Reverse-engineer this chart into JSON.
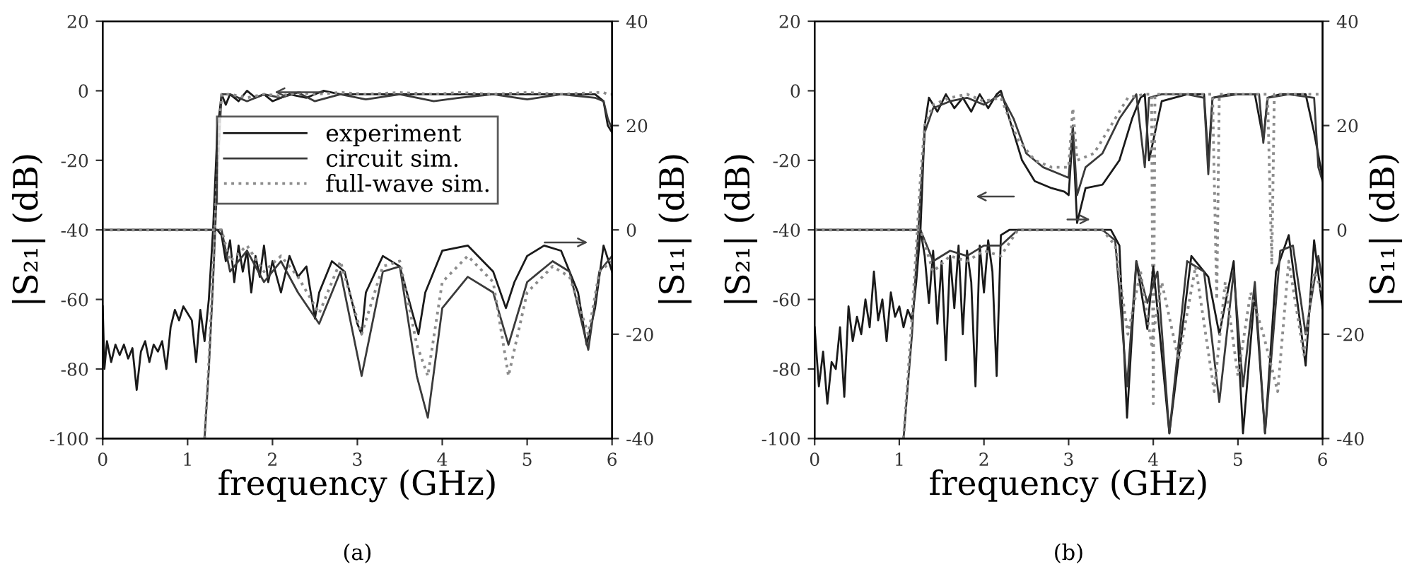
{
  "chart_data": [
    {
      "type": "line",
      "xlabel": "frequency (GHz)",
      "ylabel": "|S₂₁| (dB)",
      "y2label": "|S₁₁| (dB)",
      "annotations": [
        "(a)"
      ],
      "legend": "top",
      "xlim": [
        0,
        6
      ],
      "xticks": [
        0,
        1,
        2,
        3,
        4,
        5,
        6
      ],
      "ylim": [
        -100,
        20
      ],
      "yticks": [
        -100,
        -80,
        -60,
        -40,
        -20,
        0,
        20
      ],
      "y2lim": [
        -40,
        40
      ],
      "y2ticks": [
        -40,
        -20,
        0,
        20,
        40
      ],
      "series": [
        {
          "name": "experiment",
          "color": "#1a1a1a",
          "line_style": "solid",
          "x": [
            0,
            0.02,
            0.05,
            0.1,
            0.15,
            0.2,
            0.25,
            0.3,
            0.35,
            0.4,
            0.45,
            0.5,
            0.55,
            0.6,
            0.65,
            0.7,
            0.75,
            0.8,
            0.85,
            0.9,
            0.95,
            1.0,
            1.05,
            1.1,
            1.15,
            1.2,
            1.25,
            1.3,
            1.35,
            1.4,
            1.45,
            1.5,
            1.6,
            1.7,
            1.8,
            1.9,
            2.0,
            2.2,
            2.4,
            2.6,
            2.8,
            3.0,
            3.5,
            4.0,
            4.5,
            5.0,
            5.5,
            5.8,
            5.9,
            5.95,
            6.0
          ],
          "values": [
            -62,
            -80,
            -72,
            -78,
            -73,
            -76,
            -73,
            -77,
            -74,
            -86,
            -75,
            -72,
            -78,
            -73,
            -75,
            -72,
            -80,
            -68,
            -63,
            -66,
            -62,
            -64,
            -66,
            -78,
            -63,
            -72,
            -60,
            -40,
            -12,
            -1,
            -4,
            -1,
            -3,
            0,
            -2,
            -1,
            -3,
            -1,
            -2,
            0,
            -1,
            -1,
            -1,
            -1,
            -1,
            -1,
            -1,
            -1,
            -3,
            -10,
            -12
          ]
        },
        {
          "name": "circuit sim.",
          "color": "#3a3a3a",
          "line_style": "solid",
          "x": [
            1.2,
            1.25,
            1.3,
            1.35,
            1.4,
            1.5,
            1.7,
            1.9,
            2.1,
            2.3,
            2.5,
            2.8,
            3.1,
            3.5,
            3.9,
            4.2,
            4.6,
            5.0,
            5.4,
            5.8,
            5.9,
            5.95,
            6.0
          ],
          "values": [
            -100,
            -80,
            -55,
            -25,
            -1,
            -1,
            -3,
            -1,
            -2,
            -0.5,
            -3,
            -1,
            -2.5,
            -1,
            -3,
            -2,
            -1,
            -2.5,
            -1,
            -2,
            -3,
            -8,
            -11
          ]
        },
        {
          "name": "full-wave sim.",
          "color": "#8c8c8c",
          "line_style": "dotted",
          "x": [
            1.2,
            1.25,
            1.3,
            1.35,
            1.4,
            1.5,
            1.7,
            1.9,
            2.1,
            2.3,
            2.5,
            2.8,
            3.1,
            3.5,
            3.9,
            4.2,
            4.6,
            5.0,
            5.4,
            5.8,
            5.9,
            5.95,
            6.0
          ],
          "values": [
            -100,
            -78,
            -52,
            -22,
            -1,
            -1,
            -2,
            -1,
            -1.5,
            -0.5,
            -1,
            -0.5,
            -1,
            -0.5,
            -1,
            -0.5,
            -1,
            -0.5,
            -1,
            -0.5,
            -0.5,
            -1,
            -1
          ]
        },
        {
          "color": "#1a1a1a",
          "line_style": "solid",
          "axis": "y2",
          "x": [
            0,
            1.35,
            1.4,
            1.45,
            1.5,
            1.55,
            1.6,
            1.65,
            1.7,
            1.75,
            1.8,
            1.85,
            1.9,
            1.95,
            2.0,
            2.1,
            2.2,
            2.3,
            2.4,
            2.5,
            2.55,
            2.7,
            2.85,
            3.0,
            3.05,
            3.1,
            3.3,
            3.5,
            3.65,
            3.72,
            3.8,
            4.0,
            4.3,
            4.6,
            4.75,
            4.85,
            5.0,
            5.2,
            5.4,
            5.6,
            5.7,
            5.8,
            5.9,
            6.0
          ],
          "values": [
            0,
            0,
            -1,
            -6,
            -2,
            -10,
            -3,
            -8,
            -4,
            -12,
            -5,
            -9,
            -3,
            -10,
            -6,
            -12,
            -5,
            -9,
            -7,
            -17,
            -12,
            -6,
            -8,
            -18,
            -20,
            -12,
            -5,
            -7,
            -16,
            -20,
            -12,
            -4,
            -3,
            -8,
            -15,
            -10,
            -5,
            -3,
            -4,
            -12,
            -22,
            -15,
            -3,
            -8
          ]
        },
        {
          "color": "#3a3a3a",
          "line_style": "solid",
          "axis": "y2",
          "x": [
            0,
            1.4,
            1.5,
            1.7,
            1.9,
            2.1,
            2.3,
            2.55,
            2.8,
            3.05,
            3.3,
            3.5,
            3.7,
            3.83,
            4.0,
            4.3,
            4.6,
            4.78,
            5.0,
            5.3,
            5.5,
            5.72,
            5.85,
            6.0
          ],
          "values": [
            0,
            0,
            -8,
            -4,
            -10,
            -6,
            -12,
            -18,
            -8,
            -28,
            -8,
            -7,
            -28,
            -36,
            -15,
            -9,
            -12,
            -22,
            -10,
            -6,
            -8,
            -23,
            -8,
            -5
          ]
        },
        {
          "color": "#8c8c8c",
          "line_style": "dotted",
          "axis": "y2",
          "x": [
            0,
            1.4,
            1.5,
            1.7,
            1.9,
            2.1,
            2.3,
            2.55,
            2.8,
            3.05,
            3.3,
            3.5,
            3.7,
            3.83,
            4.0,
            4.3,
            4.6,
            4.78,
            5.0,
            5.3,
            5.5,
            5.72,
            5.85,
            6.0
          ],
          "values": [
            0,
            0,
            -6,
            -3,
            -8,
            -5,
            -9,
            -16,
            -6,
            -20,
            -7,
            -6,
            -22,
            -28,
            -10,
            -5,
            -10,
            -28,
            -12,
            -7,
            -9,
            -20,
            -8,
            -6
          ]
        }
      ]
    },
    {
      "type": "line",
      "xlabel": "frequency (GHz)",
      "ylabel": "|S₂₁| (dB)",
      "y2label": "|S₁₁| (dB)",
      "annotations": [
        "(b)"
      ],
      "xlim": [
        0,
        6
      ],
      "xticks": [
        0,
        1,
        2,
        3,
        4,
        5,
        6
      ],
      "ylim": [
        -100,
        20
      ],
      "yticks": [
        -100,
        -80,
        -60,
        -40,
        -20,
        0,
        20
      ],
      "y2lim": [
        -40,
        40
      ],
      "y2ticks": [
        -40,
        -20,
        0,
        20,
        40
      ],
      "series": [
        {
          "color": "#1a1a1a",
          "line_style": "solid",
          "x": [
            0,
            0.05,
            0.1,
            0.15,
            0.2,
            0.25,
            0.3,
            0.35,
            0.4,
            0.45,
            0.5,
            0.55,
            0.6,
            0.65,
            0.7,
            0.75,
            0.8,
            0.85,
            0.9,
            0.95,
            1.0,
            1.05,
            1.1,
            1.15,
            1.2,
            1.25,
            1.3,
            1.35,
            1.45,
            1.55,
            1.65,
            1.75,
            1.85,
            1.95,
            2.05,
            2.15,
            2.2,
            2.3,
            2.45,
            2.6,
            2.8,
            2.95,
            3.0,
            3.05,
            3.1,
            3.2,
            3.4,
            3.6,
            3.75,
            3.85,
            3.9,
            3.95,
            4.1,
            4.4,
            4.6,
            4.65,
            4.7,
            4.9,
            5.2,
            5.3,
            5.35,
            5.5,
            5.8,
            5.9,
            6.0
          ],
          "values": [
            -68,
            -85,
            -75,
            -90,
            -78,
            -80,
            -68,
            -88,
            -62,
            -72,
            -65,
            -70,
            -60,
            -68,
            -52,
            -66,
            -60,
            -72,
            -58,
            -65,
            -62,
            -68,
            -63,
            -66,
            -55,
            -40,
            -10,
            -2,
            -6,
            -1,
            -5,
            -2,
            -6,
            -1,
            -5,
            -1,
            0,
            -8,
            -20,
            -26,
            -28,
            -29,
            -30,
            -12,
            -38,
            -28,
            -27,
            -20,
            -8,
            -2,
            -1,
            -20,
            -3,
            -1,
            -1,
            -20,
            -2,
            -1,
            -1,
            -14,
            -2,
            -1,
            -1,
            -12,
            -25
          ]
        },
        {
          "color": "#3a3a3a",
          "line_style": "solid",
          "x": [
            1.05,
            1.15,
            1.25,
            1.3,
            1.4,
            1.6,
            1.8,
            2.0,
            2.2,
            2.35,
            2.5,
            2.7,
            2.9,
            3.0,
            3.05,
            3.1,
            3.2,
            3.4,
            3.6,
            3.8,
            3.9,
            3.95,
            4.1,
            4.4,
            4.6,
            4.65,
            4.7,
            5.0,
            5.25,
            5.3,
            5.35,
            5.6,
            5.9,
            5.95,
            6.0
          ],
          "values": [
            -100,
            -70,
            -30,
            -12,
            -5,
            -3,
            -2,
            -4,
            -1,
            -8,
            -18,
            -22,
            -24,
            -25,
            -10,
            -30,
            -22,
            -18,
            -8,
            -1,
            -22,
            -2,
            -1,
            -1,
            -2,
            -24,
            -2,
            -1,
            -1,
            -15,
            -2,
            -1,
            -2,
            -22,
            -26
          ]
        },
        {
          "color": "#8c8c8c",
          "line_style": "dotted",
          "x": [
            1.05,
            1.15,
            1.25,
            1.3,
            1.4,
            1.6,
            1.8,
            2.0,
            2.2,
            2.4,
            2.6,
            2.8,
            3.0,
            3.05,
            3.1,
            3.3,
            3.5,
            3.7,
            3.9,
            3.98,
            4.0,
            4.02,
            4.3,
            4.7,
            4.75,
            4.78,
            5.1,
            5.35,
            5.4,
            5.43,
            5.7,
            6.0
          ],
          "values": [
            -100,
            -65,
            -25,
            -10,
            -4,
            -2,
            -1,
            -3,
            -2,
            -14,
            -20,
            -22,
            -22,
            -5,
            -20,
            -18,
            -10,
            -2,
            -1,
            -1,
            -90,
            -1,
            -1,
            -1,
            -60,
            -1,
            -1,
            -1,
            -50,
            -1,
            -1,
            -1
          ]
        },
        {
          "color": "#1a1a1a",
          "line_style": "solid",
          "axis": "y2",
          "x": [
            0,
            1.25,
            1.3,
            1.35,
            1.4,
            1.45,
            1.5,
            1.55,
            1.6,
            1.65,
            1.7,
            1.75,
            1.8,
            1.85,
            1.9,
            1.95,
            2.0,
            2.05,
            2.1,
            2.15,
            2.2,
            2.3,
            3.5,
            3.6,
            3.69,
            3.8,
            3.93,
            4.0,
            4.19,
            4.45,
            4.65,
            4.78,
            4.95,
            5.06,
            5.2,
            5.32,
            5.45,
            5.6,
            5.8,
            5.9,
            6.0
          ],
          "values": [
            0,
            0,
            -5,
            -14,
            -4,
            -18,
            -6,
            -25,
            -5,
            -15,
            -3,
            -20,
            -4,
            -10,
            -30,
            -3,
            -12,
            -2,
            -8,
            -28,
            -1,
            0,
            0,
            -3,
            -36,
            -6,
            -19,
            -7,
            -39,
            -5,
            -9,
            -20,
            -6,
            -39,
            -12,
            -39,
            -8,
            -1,
            -26,
            -2,
            -15
          ]
        },
        {
          "color": "#3a3a3a",
          "line_style": "solid",
          "axis": "y2",
          "x": [
            0,
            1.25,
            1.4,
            1.6,
            1.8,
            2.0,
            2.2,
            2.4,
            3.4,
            3.55,
            3.69,
            3.8,
            3.93,
            4.05,
            4.19,
            4.4,
            4.6,
            4.78,
            4.95,
            5.06,
            5.2,
            5.32,
            5.5,
            5.65,
            5.8,
            5.95,
            6.0
          ],
          "values": [
            0,
            0,
            -6,
            -4,
            -5,
            -3,
            -3,
            0,
            0,
            -2,
            -30,
            -6,
            -14,
            -8,
            -39,
            -6,
            -8,
            -33,
            -8,
            -30,
            -10,
            -39,
            -4,
            -3,
            -20,
            -5,
            -10
          ]
        },
        {
          "color": "#8c8c8c",
          "line_style": "dotted",
          "axis": "y2",
          "x": [
            0,
            1.25,
            1.4,
            1.6,
            1.8,
            2.0,
            2.2,
            2.4,
            3.4,
            3.55,
            3.7,
            3.85,
            3.98,
            4.1,
            4.3,
            4.5,
            4.72,
            4.85,
            5.0,
            5.15,
            5.3,
            5.47,
            5.6,
            5.78,
            5.9,
            6.0
          ],
          "values": [
            0,
            0,
            -8,
            -5,
            -6,
            -4,
            -5,
            0,
            0,
            -3,
            -20,
            -8,
            -22,
            -10,
            -25,
            -7,
            -31,
            -10,
            -28,
            -12,
            -20,
            -31,
            -6,
            -24,
            -8,
            -12
          ]
        }
      ]
    }
  ]
}
